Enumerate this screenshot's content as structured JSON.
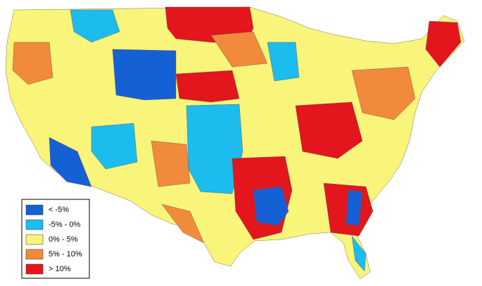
{
  "legend": {
    "items": [
      {
        "label": "< -5%",
        "color": "#1660d6"
      },
      {
        "label": "-5% - 0%",
        "color": "#1cbcee"
      },
      {
        "label": "0% - 5%",
        "color": "#f9f47a"
      },
      {
        "label": "5% - 10%",
        "color": "#f18a3b"
      },
      {
        "label": "> 10%",
        "color": "#e2161c"
      }
    ]
  }
}
